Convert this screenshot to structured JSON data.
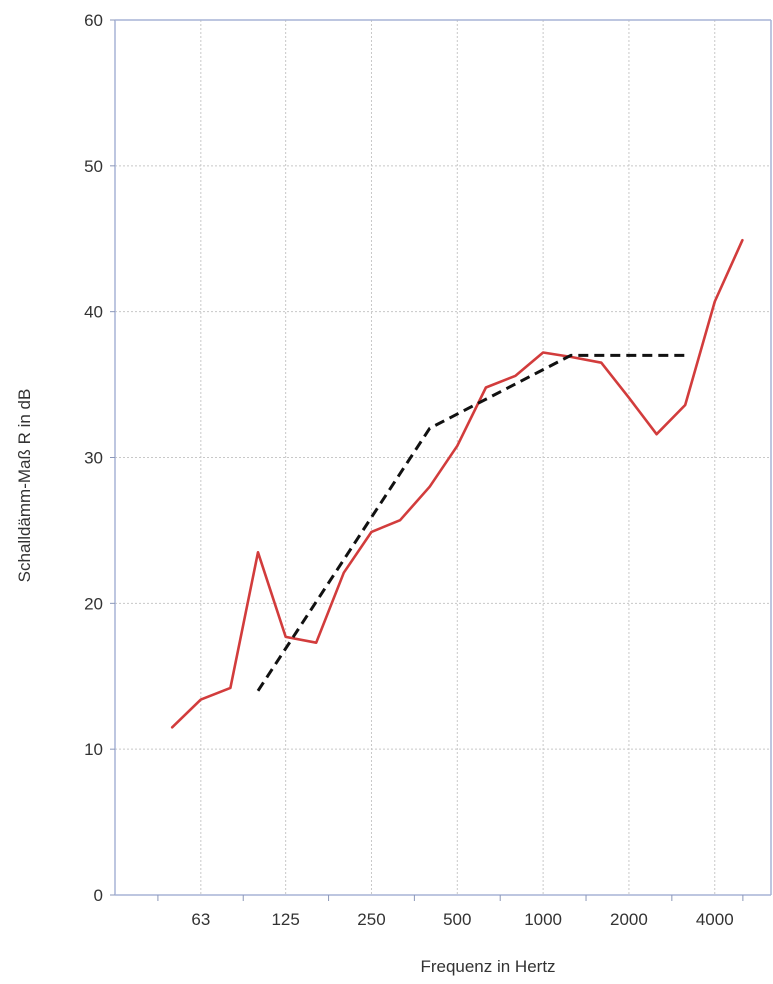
{
  "chart_data": {
    "type": "line",
    "xlabel": "Frequenz in Hertz",
    "ylabel": "Schalldämm-Maß  R in dB",
    "ylim": [
      0,
      60
    ],
    "yticks": [
      0,
      10,
      20,
      30,
      40,
      50,
      60
    ],
    "x_scale": "log",
    "xlim": [
      31.5,
      6300
    ],
    "xtick_labels": [
      "63",
      "125",
      "250",
      "500",
      "1000",
      "2000",
      "4000"
    ],
    "xtick_values": [
      63,
      125,
      250,
      500,
      1000,
      2000,
      4000
    ],
    "grid": true,
    "legend": "none",
    "series": [
      {
        "color": "#d23c3c",
        "line_style": "solid",
        "x": [
          50,
          63,
          80,
          100,
          125,
          160,
          200,
          250,
          315,
          400,
          500,
          630,
          800,
          1000,
          1250,
          1600,
          2000,
          2500,
          3150,
          4000,
          5000
        ],
        "y": [
          11.5,
          13.4,
          14.2,
          23.5,
          17.7,
          17.3,
          22.1,
          24.9,
          25.7,
          28.0,
          30.8,
          34.8,
          35.6,
          37.2,
          36.9,
          36.5,
          34.1,
          31.6,
          33.6,
          40.7,
          44.9
        ]
      },
      {
        "color": "#111111",
        "line_style": "dashed",
        "x": [
          100,
          400,
          1250,
          3150
        ],
        "y": [
          14.0,
          32.0,
          37.0,
          37.0
        ]
      }
    ]
  }
}
